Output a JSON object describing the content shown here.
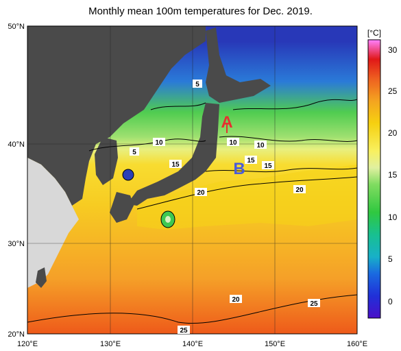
{
  "title": "Monthly mean 100m temperatures for Dec. 2019.",
  "lat_labels": [
    "50°N",
    "40°N",
    "30°N",
    "20°N"
  ],
  "lon_labels": [
    "120°E",
    "130°E",
    "140°E",
    "150°E",
    "160°E"
  ],
  "colorbar": {
    "unit": "[°C]",
    "ticks": [
      "30",
      "25",
      "20",
      "15",
      "10",
      "5",
      "0"
    ]
  },
  "contour_labels": [
    "5",
    "5",
    "10",
    "15",
    "10",
    "10",
    "15",
    "15",
    "20",
    "20",
    "20",
    "25",
    "25"
  ],
  "points": {
    "a": "A",
    "b": "B"
  },
  "colors": {
    "land": "#4a4a4a",
    "china_land": "#d8d8d8",
    "deep_blue": "#2a3fb8",
    "green": "#5fd45f",
    "yellow": "#f5d020",
    "orange": "#f39a1e",
    "red": "#e8401c",
    "point_a": "#e53030",
    "point_b": "#4a5cd8"
  }
}
